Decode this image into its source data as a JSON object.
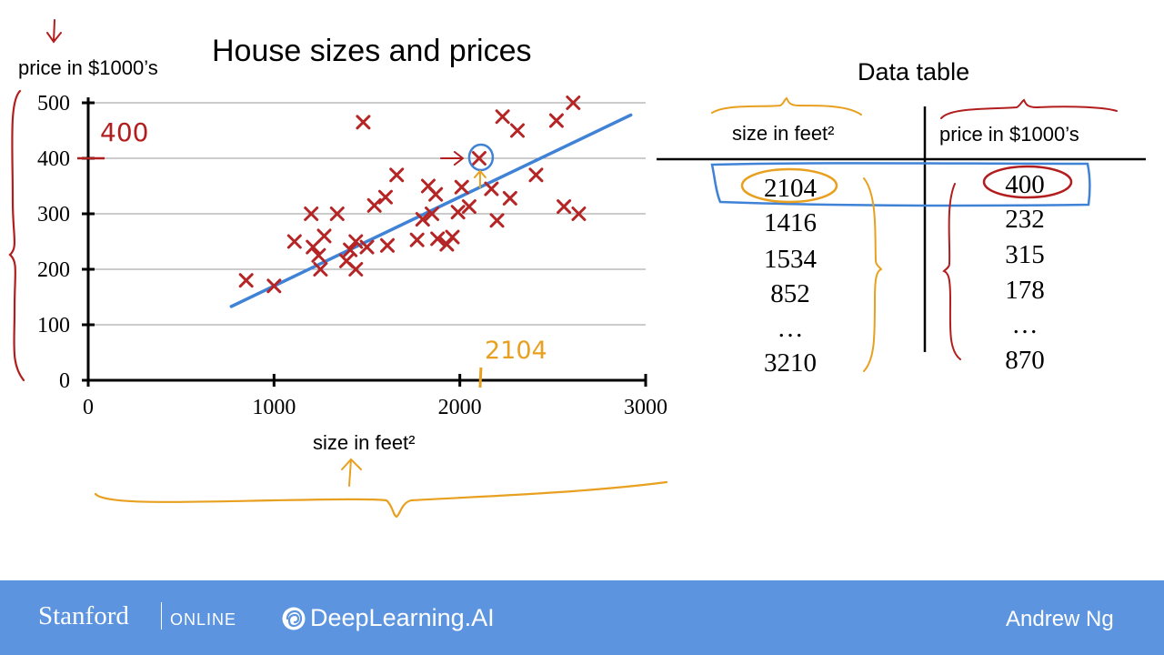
{
  "chart_data": {
    "type": "scatter",
    "title": "House sizes and prices",
    "xlabel": "size in feet²",
    "ylabel": "price in $1000’s",
    "xlim": [
      0,
      3000
    ],
    "ylim": [
      0,
      500
    ],
    "xticks": [
      "0",
      "1000",
      "2000",
      "3000"
    ],
    "yticks": [
      "0",
      "100",
      "200",
      "300",
      "400",
      "500"
    ],
    "grid": true,
    "marker_color": "#b52525",
    "fit_line_color": "#3f82d6",
    "annotation_color": "#e8a020",
    "ink_red": "#b21e1e",
    "points": [
      {
        "x": 850,
        "y": 180
      },
      {
        "x": 1000,
        "y": 170
      },
      {
        "x": 1110,
        "y": 250
      },
      {
        "x": 1200,
        "y": 300
      },
      {
        "x": 1210,
        "y": 240
      },
      {
        "x": 1240,
        "y": 225
      },
      {
        "x": 1250,
        "y": 200
      },
      {
        "x": 1270,
        "y": 260
      },
      {
        "x": 1340,
        "y": 300
      },
      {
        "x": 1390,
        "y": 215
      },
      {
        "x": 1410,
        "y": 235
      },
      {
        "x": 1440,
        "y": 200
      },
      {
        "x": 1440,
        "y": 250
      },
      {
        "x": 1480,
        "y": 465
      },
      {
        "x": 1500,
        "y": 240
      },
      {
        "x": 1540,
        "y": 315
      },
      {
        "x": 1600,
        "y": 330
      },
      {
        "x": 1610,
        "y": 243
      },
      {
        "x": 1660,
        "y": 370
      },
      {
        "x": 1770,
        "y": 253
      },
      {
        "x": 1800,
        "y": 290
      },
      {
        "x": 1830,
        "y": 350
      },
      {
        "x": 1850,
        "y": 300
      },
      {
        "x": 1870,
        "y": 335
      },
      {
        "x": 1880,
        "y": 255
      },
      {
        "x": 1930,
        "y": 245
      },
      {
        "x": 1960,
        "y": 258
      },
      {
        "x": 1990,
        "y": 303
      },
      {
        "x": 2010,
        "y": 348
      },
      {
        "x": 2050,
        "y": 313
      },
      {
        "x": 2104,
        "y": 400
      },
      {
        "x": 2170,
        "y": 345
      },
      {
        "x": 2200,
        "y": 288
      },
      {
        "x": 2230,
        "y": 475
      },
      {
        "x": 2270,
        "y": 328
      },
      {
        "x": 2310,
        "y": 450
      },
      {
        "x": 2410,
        "y": 370
      },
      {
        "x": 2520,
        "y": 468
      },
      {
        "x": 2560,
        "y": 313
      },
      {
        "x": 2610,
        "y": 500
      },
      {
        "x": 2640,
        "y": 300
      }
    ],
    "fit_line": {
      "x": [
        770,
        2920
      ],
      "y": [
        133,
        478
      ]
    },
    "highlight": {
      "x": 2104,
      "y": 400
    },
    "annotations": {
      "y_value": "400",
      "x_value": "2104"
    }
  },
  "table": {
    "title": "Data table",
    "headers": {
      "size": "size in feet²",
      "price": "price in $1000’s"
    },
    "rows": [
      {
        "size": "2104",
        "price": "400"
      },
      {
        "size": "1416",
        "price": "232"
      },
      {
        "size": "1534",
        "price": "315"
      },
      {
        "size": "852",
        "price": "178"
      },
      {
        "size": "…",
        "price": "…"
      },
      {
        "size": "3210",
        "price": "870"
      }
    ]
  },
  "footer": {
    "stanford": "Stanford",
    "online": "ONLINE",
    "deeplearning": "DeepLearning.AI",
    "author": "Andrew Ng",
    "background": "#5c94e0"
  }
}
